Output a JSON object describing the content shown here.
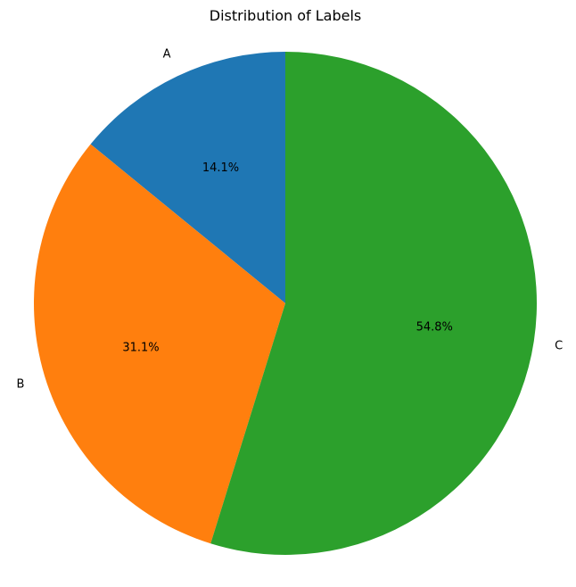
{
  "chart_data": {
    "type": "pie",
    "title": "Distribution of Labels",
    "labels": [
      "A",
      "B",
      "C"
    ],
    "values": [
      14.1,
      31.1,
      54.8
    ],
    "value_labels": [
      "14.1%",
      "31.1%",
      "54.8%"
    ],
    "colors": [
      "#1f77b4",
      "#ff7f0e",
      "#2ca02c"
    ],
    "start_angle_deg": 90,
    "direction": "counterclockwise"
  }
}
